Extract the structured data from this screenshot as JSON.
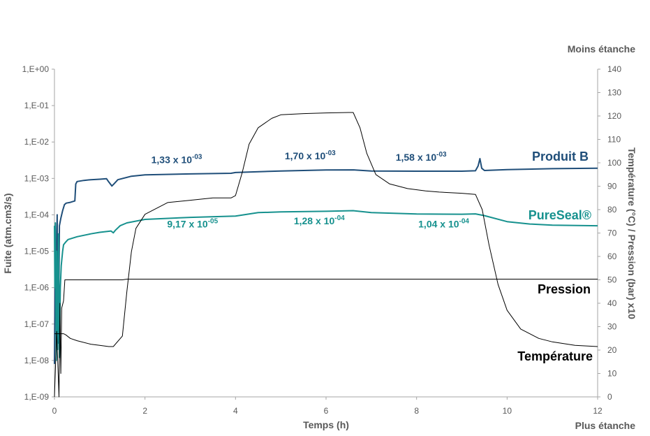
{
  "chart_data": {
    "type": "line",
    "title": "",
    "xlabel": "Temps (h)",
    "ylabel_left": "Fuite (atm.cm3/s)",
    "ylabel_right": "Température (°C) / Pression (bar) x10",
    "corner_top_right": "Moins étanche",
    "corner_bottom_right": "Plus étanche",
    "xlim": [
      0,
      12
    ],
    "x_ticks": [
      0,
      2,
      4,
      6,
      8,
      10,
      12
    ],
    "x_tick_labels": [
      "0",
      "2",
      "4",
      "6",
      "8",
      "10",
      "12"
    ],
    "y_left_scale": "log",
    "y_left_exp_range": [
      -9,
      0
    ],
    "y_left_tick_labels": [
      "1,E+00",
      "1,E-01",
      "1,E-02",
      "1,E-03",
      "1,E-04",
      "1,E-05",
      "1,E-06",
      "1,E-07",
      "1,E-08",
      "1,E-09"
    ],
    "y_right_lim": [
      0,
      140
    ],
    "y_right_ticks": [
      0,
      10,
      20,
      30,
      40,
      50,
      60,
      70,
      80,
      90,
      100,
      110,
      120,
      130,
      140
    ],
    "y_right_tick_labels": [
      "0",
      "10",
      "20",
      "30",
      "40",
      "50",
      "60",
      "70",
      "80",
      "90",
      "100",
      "110",
      "120",
      "130",
      "140"
    ],
    "grid": false,
    "colors": {
      "produit_b": "#1f4e79",
      "pureseal": "#16918e",
      "black": "#000000",
      "axis": "#a6a6a6",
      "text": "#595959"
    },
    "series": [
      {
        "name": "Produit B",
        "axis": "left",
        "color": "#1f4e79",
        "x": [
          0,
          0.02,
          0.04,
          0.06,
          0.07,
          0.09,
          0.11,
          0.14,
          0.18,
          0.22,
          0.26,
          0.35,
          0.45,
          0.47,
          0.5,
          0.65,
          0.8,
          1.0,
          1.15,
          1.2,
          1.27,
          1.32,
          1.4,
          1.7,
          2.0,
          3.0,
          3.9,
          4.0,
          5.0,
          6.0,
          6.6,
          7.0,
          8.0,
          9.0,
          9.3,
          9.36,
          9.4,
          9.44,
          9.5,
          10.0,
          11.0,
          12.0
        ],
        "y": [
          8e-09,
          2e-05,
          3e-06,
          0.0001,
          1e-06,
          3e-08,
          5e-05,
          8e-05,
          0.00013,
          0.00019,
          0.00021,
          0.00022,
          0.00024,
          0.0007,
          0.00082,
          0.00088,
          0.00092,
          0.00095,
          0.00098,
          0.0008,
          0.00062,
          0.00072,
          0.00092,
          0.00115,
          0.00125,
          0.00133,
          0.00138,
          0.00145,
          0.0016,
          0.0017,
          0.00172,
          0.0016,
          0.00158,
          0.00158,
          0.00162,
          0.0022,
          0.0035,
          0.0019,
          0.00165,
          0.00175,
          0.00185,
          0.0019
        ]
      },
      {
        "name": "PureSeal®",
        "axis": "left",
        "color": "#16918e",
        "x": [
          0,
          0.01,
          0.02,
          0.04,
          0.05,
          0.07,
          0.09,
          0.11,
          0.13,
          0.15,
          0.18,
          0.2,
          0.25,
          0.3,
          0.5,
          0.8,
          1.0,
          1.25,
          1.3,
          1.35,
          1.45,
          1.6,
          2.0,
          3.0,
          4.0,
          4.5,
          5.0,
          6.0,
          6.6,
          7.0,
          8.0,
          9.0,
          9.3,
          9.5,
          10.0,
          10.5,
          11.0,
          12.0
        ],
        "y": [
          5e-05,
          1e-06,
          6e-05,
          1e-08,
          1e-05,
          2e-08,
          3e-05,
          1.2e-08,
          1e-06,
          4e-06,
          1e-05,
          1.5e-05,
          1.8e-05,
          2.1e-05,
          2.5e-05,
          3e-05,
          3.3e-05,
          3.6e-05,
          3.2e-05,
          3.8e-05,
          5e-05,
          6e-05,
          7.5e-05,
          8.5e-05,
          9.2e-05,
          0.000115,
          0.00012,
          0.000125,
          0.00013,
          0.000115,
          0.000105,
          0.000104,
          0.000106,
          9.5e-05,
          6.5e-05,
          5.6e-05,
          5.2e-05,
          5e-05
        ]
      },
      {
        "name": "Pression",
        "axis": "right",
        "color": "#000000",
        "x": [
          0,
          0.05,
          0.1,
          0.12,
          0.14,
          0.16,
          0.2,
          0.23,
          0.25,
          1.5,
          1.6,
          12.0
        ],
        "y": [
          0,
          28,
          0,
          40,
          10,
          38,
          41,
          50,
          50,
          50,
          50.3,
          50.3
        ]
      },
      {
        "name": "Température",
        "axis": "right",
        "color": "#000000",
        "x": [
          0,
          0.2,
          0.25,
          0.35,
          0.5,
          0.8,
          1.0,
          1.2,
          1.3,
          1.5,
          1.6,
          1.7,
          1.8,
          2.0,
          2.5,
          3.0,
          3.5,
          3.9,
          4.0,
          4.15,
          4.3,
          4.5,
          4.8,
          5.0,
          5.5,
          6.0,
          6.5,
          6.6,
          6.75,
          6.9,
          7.1,
          7.4,
          7.8,
          8.2,
          8.5,
          9.0,
          9.3,
          9.45,
          9.6,
          9.8,
          10.0,
          10.3,
          10.7,
          11.0,
          11.5,
          12.0
        ],
        "y": [
          27,
          27,
          26.5,
          25,
          24,
          22.5,
          22,
          21.5,
          21.5,
          26,
          45,
          62,
          72,
          78,
          83,
          84,
          85,
          85,
          86,
          96,
          108,
          115,
          119,
          120.5,
          121,
          121.3,
          121.5,
          121.5,
          115,
          104,
          95,
          91,
          89,
          88,
          87.5,
          87,
          86.5,
          80,
          65,
          48,
          37,
          29,
          25,
          23.5,
          22,
          21.5
        ]
      }
    ],
    "annotations": [
      {
        "text": "1,33 x 10",
        "sup": "-03",
        "x": 2.7,
        "yexp": -2.58,
        "color": "#1f4e79"
      },
      {
        "text": "1,70 x 10",
        "sup": "-03",
        "x": 5.65,
        "yexp": -2.48,
        "color": "#1f4e79"
      },
      {
        "text": "1,58 x 10",
        "sup": "-03",
        "x": 8.1,
        "yexp": -2.51,
        "color": "#1f4e79"
      },
      {
        "text": "9,17 x 10",
        "sup": "-05",
        "x": 3.05,
        "yexp": -4.35,
        "color": "#16918e"
      },
      {
        "text": "1,28 x 10",
        "sup": "-04",
        "x": 5.85,
        "yexp": -4.26,
        "color": "#16918e"
      },
      {
        "text": "1,04 x 10",
        "sup": "-04",
        "x": 8.6,
        "yexp": -4.35,
        "color": "#16918e"
      }
    ],
    "series_labels": [
      {
        "text": "Produit B",
        "color": "#1f4e79"
      },
      {
        "text": "PureSeal®",
        "color": "#16918e"
      },
      {
        "text": "Pression",
        "color": "#000000"
      },
      {
        "text": "Température",
        "color": "#000000"
      }
    ]
  }
}
